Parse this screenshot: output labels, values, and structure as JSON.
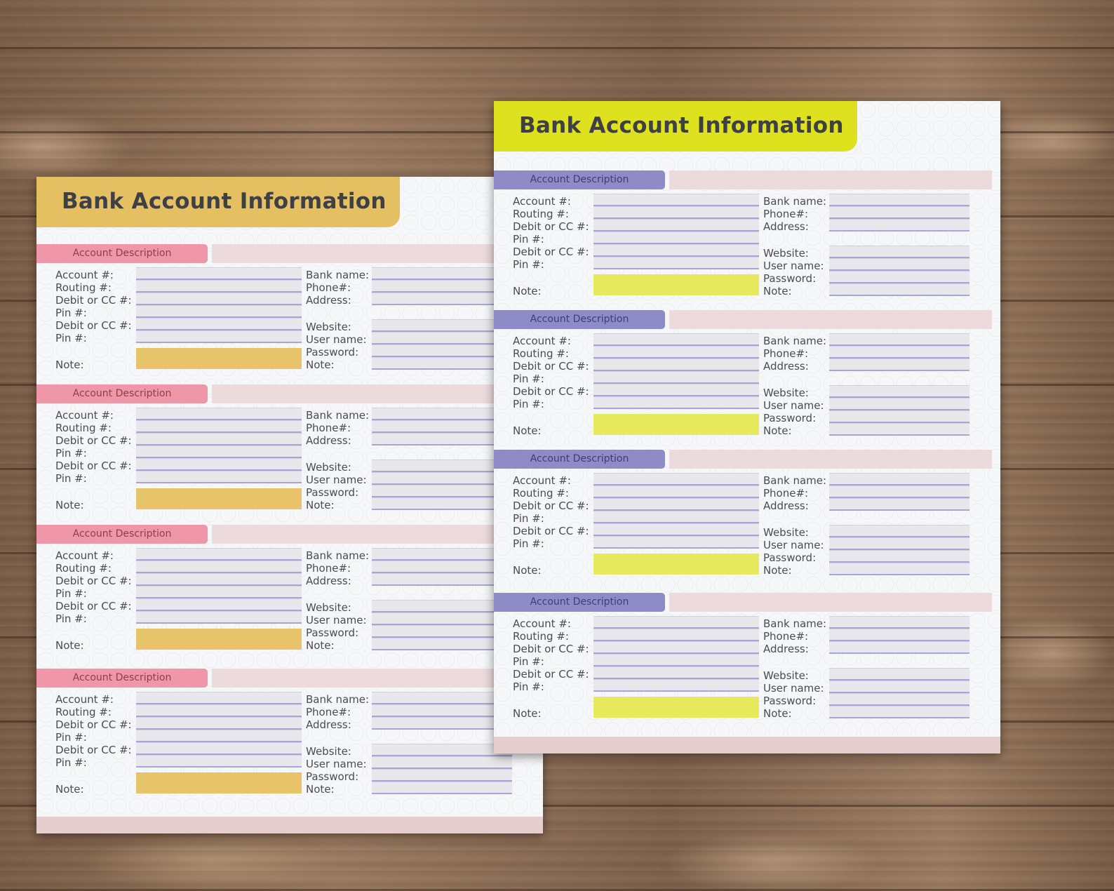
{
  "background": {
    "surface": "wood-planks"
  },
  "colors": {
    "back_title": "#e4c063",
    "back_tab": "#ef97a8",
    "back_note": "#e7c46a",
    "front_title": "#dde11e",
    "front_tab": "#8e8bc7",
    "front_note": "#e8ea5e"
  },
  "sheets": [
    {
      "id": "back",
      "title": "Bank Account Information",
      "sections": [
        {
          "desc": "Account Description"
        },
        {
          "desc": "Account Description"
        },
        {
          "desc": "Account Description"
        },
        {
          "desc": "Account Description"
        }
      ]
    },
    {
      "id": "front",
      "title": "Bank Account Information",
      "sections": [
        {
          "desc": "Account Description"
        },
        {
          "desc": "Account Description"
        },
        {
          "desc": "Account Description"
        },
        {
          "desc": "Account Description"
        }
      ]
    }
  ],
  "fields": {
    "left": [
      "Account #:",
      "Routing #:",
      "Debit or CC #:",
      "Pin #:",
      "Debit or CC #:",
      "Pin #:"
    ],
    "note": "Note:",
    "right_top": [
      "Bank name:",
      "Phone#:",
      "Address:"
    ],
    "right_bottom": [
      "Website:",
      "User name:",
      "Password:",
      "Note:"
    ]
  }
}
